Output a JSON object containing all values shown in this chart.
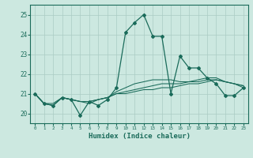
{
  "xlabel": "Humidex (Indice chaleur)",
  "bg_color": "#cce8e0",
  "grid_color": "#aaccc4",
  "line_color": "#1a6b5a",
  "xlim": [
    -0.5,
    23.5
  ],
  "ylim": [
    19.5,
    25.5
  ],
  "yticks": [
    20,
    21,
    22,
    23,
    24,
    25
  ],
  "xticks": [
    0,
    1,
    2,
    3,
    4,
    5,
    6,
    7,
    8,
    9,
    10,
    11,
    12,
    13,
    14,
    15,
    16,
    17,
    18,
    19,
    20,
    21,
    22,
    23
  ],
  "lines": [
    [
      21.0,
      20.5,
      20.4,
      20.8,
      20.7,
      19.9,
      20.6,
      20.4,
      20.7,
      21.3,
      24.1,
      24.6,
      25.0,
      23.9,
      23.9,
      21.0,
      22.9,
      22.3,
      22.3,
      21.8,
      21.5,
      20.9,
      20.9,
      21.3
    ],
    [
      21.0,
      20.5,
      20.4,
      20.8,
      20.7,
      20.6,
      20.5,
      20.7,
      20.8,
      21.0,
      21.0,
      21.1,
      21.2,
      21.2,
      21.3,
      21.3,
      21.4,
      21.5,
      21.5,
      21.6,
      21.7,
      21.6,
      21.5,
      21.3
    ],
    [
      21.0,
      20.5,
      20.4,
      20.8,
      20.7,
      20.6,
      20.6,
      20.7,
      20.8,
      21.0,
      21.1,
      21.2,
      21.3,
      21.4,
      21.5,
      21.5,
      21.5,
      21.6,
      21.6,
      21.7,
      21.7,
      21.6,
      21.5,
      21.4
    ],
    [
      21.0,
      20.5,
      20.5,
      20.8,
      20.7,
      20.6,
      20.6,
      20.7,
      20.8,
      21.1,
      21.3,
      21.5,
      21.6,
      21.7,
      21.7,
      21.7,
      21.6,
      21.6,
      21.7,
      21.8,
      21.8,
      21.6,
      21.5,
      21.4
    ]
  ]
}
